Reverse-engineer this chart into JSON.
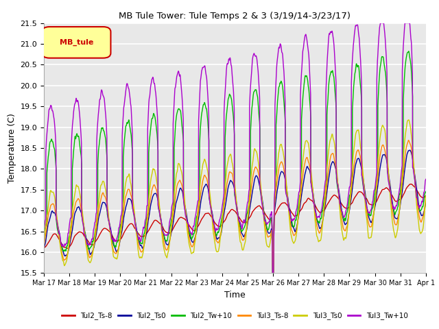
{
  "title": "MB Tule Tower: Tule Temps 2 & 3 (3/19/14-3/23/17)",
  "xlabel": "Time",
  "ylabel": "Temperature (C)",
  "ylim": [
    15.5,
    21.5
  ],
  "xlim": [
    0,
    360
  ],
  "background_color": "#ffffff",
  "plot_bg_color": "#e8e8e8",
  "grid_color": "#ffffff",
  "legend_label": "MB_tule",
  "series": {
    "Tul2_Ts-8": {
      "color": "#cc0000",
      "lw": 1.0
    },
    "Tul2_Ts0": {
      "color": "#000099",
      "lw": 1.0
    },
    "Tul2_Tw+10": {
      "color": "#00bb00",
      "lw": 1.0
    },
    "Tul3_Ts-8": {
      "color": "#ff8800",
      "lw": 1.0
    },
    "Tul3_Ts0": {
      "color": "#cccc00",
      "lw": 1.0
    },
    "Tul3_Tw+10": {
      "color": "#aa00cc",
      "lw": 1.0
    }
  },
  "tick_dates": [
    "Mar 17",
    "Mar 18",
    "Mar 19",
    "Mar 20",
    "Mar 21",
    "Mar 22",
    "Mar 23",
    "Mar 24",
    "Mar 25",
    "Mar 26",
    "Mar 27",
    "Mar 28",
    "Mar 29",
    "Mar 30",
    "Mar 31",
    "Apr 1"
  ],
  "tick_positions": [
    0,
    24,
    48,
    72,
    96,
    120,
    144,
    168,
    192,
    216,
    240,
    264,
    288,
    312,
    336,
    360
  ]
}
